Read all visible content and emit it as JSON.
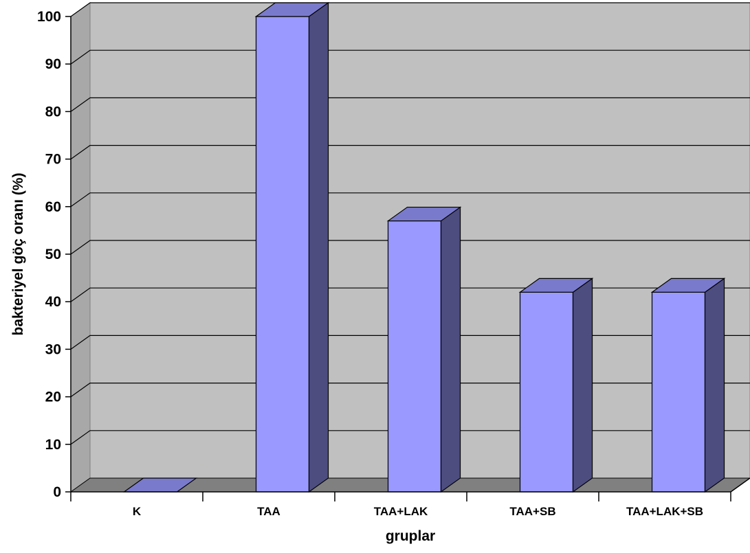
{
  "chart_data": {
    "type": "bar",
    "categories": [
      "K",
      "TAA",
      "TAA+LAK",
      "TAA+SB",
      "TAA+LAK+SB"
    ],
    "values": [
      0,
      100,
      57,
      42,
      42
    ],
    "title": "",
    "xlabel": "gruplar",
    "ylabel": "bakteriyel göç oranı (%)",
    "ylim": [
      0,
      100
    ],
    "yticks": [
      "0",
      "10",
      "20",
      "30",
      "40",
      "50",
      "60",
      "70",
      "80",
      "90",
      "100"
    ],
    "grid": true,
    "legend": "none",
    "style": "3d-column",
    "colors": {
      "bar_front": "#9999ff",
      "bar_side": "#4d4d80",
      "bar_top": "#7a7acc",
      "plot_back": "#c0c0c0",
      "plot_wall": "#a8a8a8",
      "floor": "#808080",
      "gridline": "#000000"
    }
  }
}
